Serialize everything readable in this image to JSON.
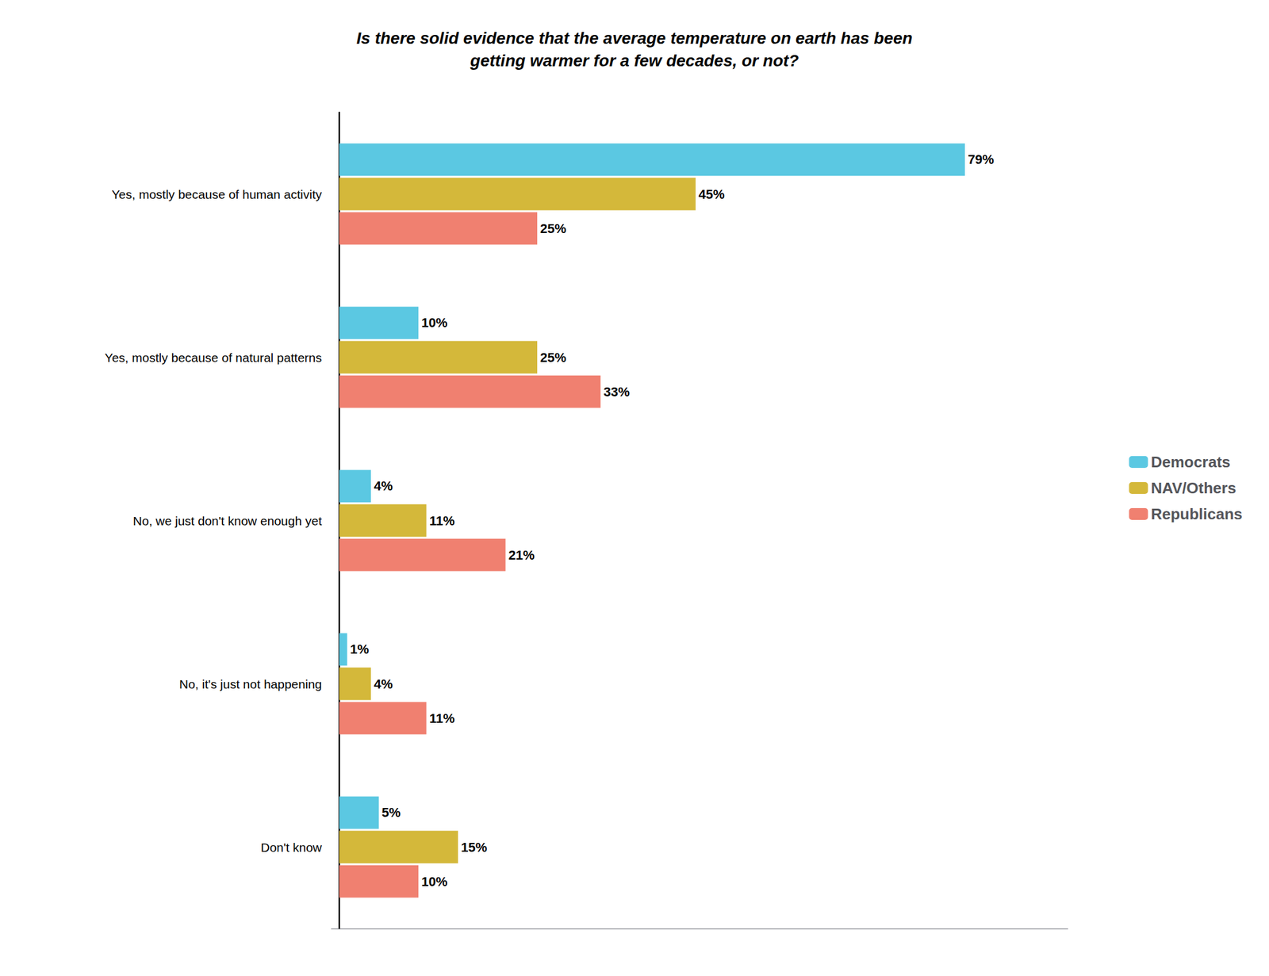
{
  "chart_data": {
    "type": "bar",
    "orientation": "horizontal",
    "title": "Is there solid evidence that the average temperature on earth has been\ngetting warmer for a few decades, or not?",
    "categories": [
      "Yes, mostly because of human activity",
      "Yes, mostly because of natural patterns",
      "No, we just don't know enough yet",
      "No, it's just not happening",
      "Don't know"
    ],
    "series": [
      {
        "name": "Democrats",
        "color": "#5BC8E2",
        "values": [
          79,
          10,
          4,
          1,
          5
        ],
        "value_labels": [
          "79%",
          "10%",
          "4%",
          "1%",
          "5%"
        ]
      },
      {
        "name": "NAV/Others",
        "color": "#D4B83A",
        "values": [
          45,
          25,
          11,
          4,
          15
        ],
        "value_labels": [
          "45%",
          "25%",
          "11%",
          "4%",
          "15%"
        ]
      },
      {
        "name": "Republicans",
        "color": "#F08070",
        "values": [
          25,
          33,
          21,
          11,
          10
        ],
        "value_labels": [
          "25%",
          "33%",
          "21%",
          "11%",
          "10%"
        ]
      }
    ],
    "xlim": [
      -1,
      92
    ],
    "xticks": [],
    "data_labels": true,
    "tick_labels": "y",
    "grid": false,
    "legend": "right"
  }
}
